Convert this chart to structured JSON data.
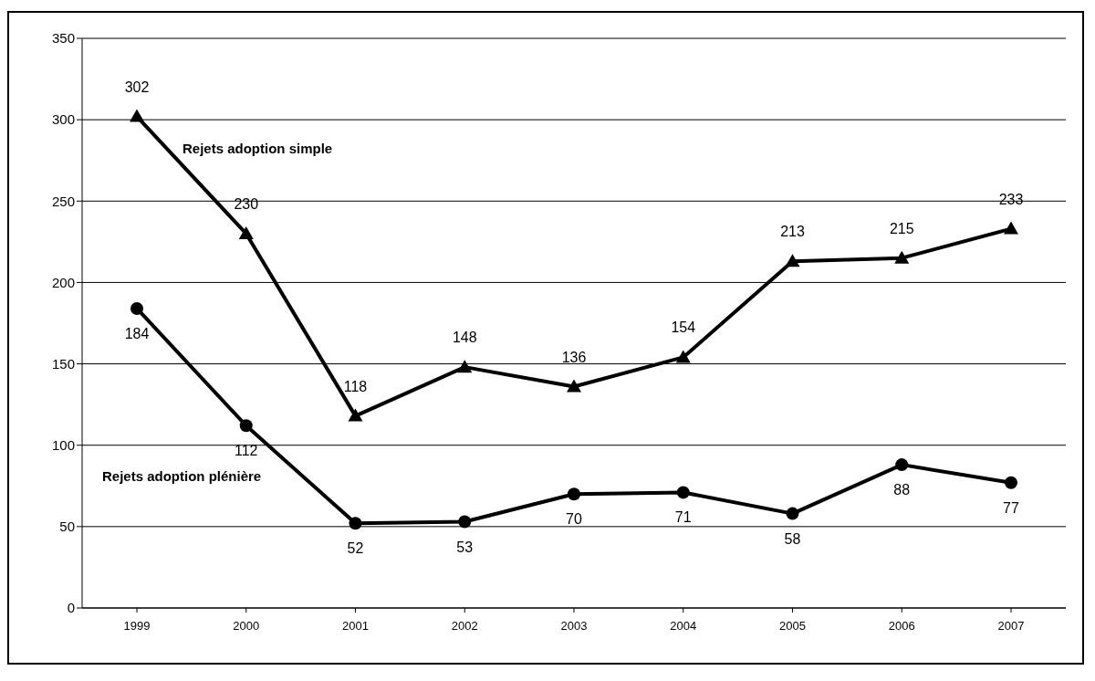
{
  "chart_data": {
    "type": "line",
    "categories": [
      "1999",
      "2000",
      "2001",
      "2002",
      "2003",
      "2004",
      "2005",
      "2006",
      "2007"
    ],
    "series": [
      {
        "name": "Rejets adoption simple",
        "color": "#000000",
        "marker": "triangle",
        "values": [
          302,
          230,
          118,
          148,
          136,
          154,
          213,
          215,
          233
        ]
      },
      {
        "name": "Rejets adoption plénière",
        "color": "#000000",
        "marker": "circle",
        "values": [
          184,
          112,
          52,
          53,
          70,
          71,
          58,
          88,
          77
        ]
      }
    ],
    "ylim": [
      0,
      350
    ],
    "yticks": [
      0,
      50,
      100,
      150,
      200,
      250,
      300,
      350
    ],
    "grid": "y",
    "data_labels": true,
    "legend": false,
    "line_style": "solid"
  }
}
